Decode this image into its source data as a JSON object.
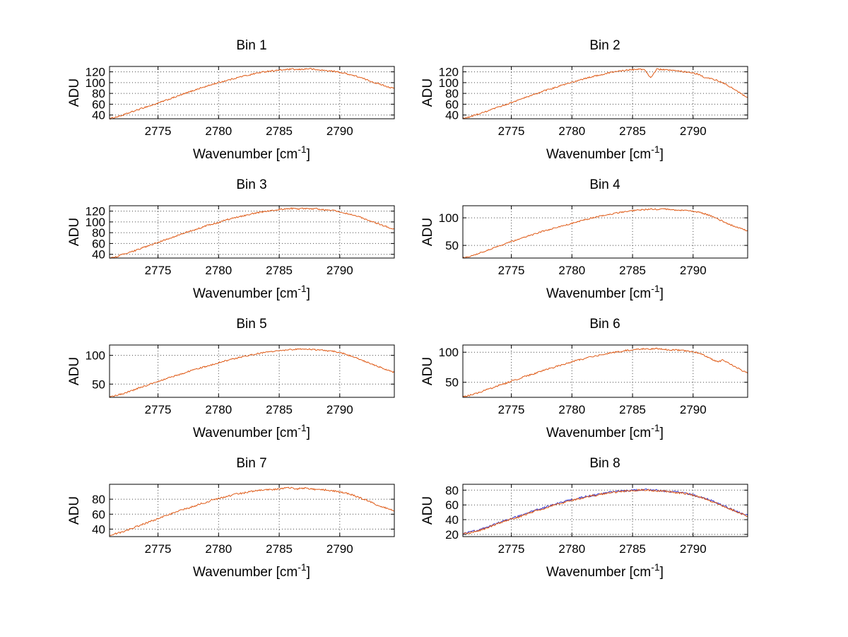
{
  "figure": {
    "background": "#ffffff"
  },
  "axis_labels": {
    "ylabel": "ADU",
    "xlabel_main": "Wavenumber [cm",
    "xlabel_sup": "-1",
    "xlabel_close": "]"
  },
  "colors": {
    "line_orange": "#df5a16",
    "line_blue": "#3333cc",
    "grid": "#4a4a4a",
    "axes": "#000000"
  },
  "chart_data": [
    {
      "type": "line",
      "title": "Bin 1",
      "xlabel": "Wavenumber [cm^-1]",
      "ylabel": "ADU",
      "xlim": [
        2771,
        2794.5
      ],
      "ylim": [
        33,
        130
      ],
      "xticks": [
        2775,
        2780,
        2785,
        2790
      ],
      "yticks": [
        40,
        60,
        80,
        100,
        120
      ],
      "grid": true,
      "x_start": 2771,
      "x_step": 0.5,
      "noise_amplitude": 1.3,
      "series": [
        {
          "name": "spectrum",
          "color": "#df5a16",
          "values": [
            33,
            36,
            39,
            43,
            47,
            51,
            55,
            58,
            62,
            66,
            70,
            74,
            78,
            82,
            86,
            90,
            93,
            97,
            100,
            103,
            106,
            109,
            112,
            114,
            117,
            119,
            121,
            122,
            123,
            124,
            125,
            124,
            125,
            126,
            124,
            123,
            122,
            121,
            119,
            117,
            114,
            111,
            107,
            103,
            99,
            96,
            92,
            89
          ]
        }
      ]
    },
    {
      "type": "line",
      "title": "Bin 2",
      "xlabel": "Wavenumber [cm^-1]",
      "ylabel": "ADU",
      "xlim": [
        2771,
        2794.5
      ],
      "ylim": [
        33,
        130
      ],
      "xticks": [
        2775,
        2780,
        2785,
        2790
      ],
      "yticks": [
        40,
        60,
        80,
        100,
        120
      ],
      "grid": true,
      "x_start": 2771,
      "x_step": 0.5,
      "noise_amplitude": 1.3,
      "series": [
        {
          "name": "spectrum",
          "color": "#df5a16",
          "values": [
            33,
            36,
            40,
            43,
            47,
            51,
            55,
            59,
            63,
            67,
            71,
            75,
            79,
            83,
            87,
            90,
            94,
            97,
            100,
            104,
            107,
            110,
            113,
            115,
            118,
            120,
            122,
            123,
            124,
            125,
            124,
            109,
            125,
            124,
            123,
            122,
            121,
            120,
            118,
            115,
            109,
            107,
            104,
            99,
            93,
            86,
            79,
            72
          ]
        }
      ]
    },
    {
      "type": "line",
      "title": "Bin 3",
      "xlabel": "Wavenumber [cm^-1]",
      "ylabel": "ADU",
      "xlim": [
        2771,
        2794.5
      ],
      "ylim": [
        33,
        130
      ],
      "xticks": [
        2775,
        2780,
        2785,
        2790
      ],
      "yticks": [
        40,
        60,
        80,
        100,
        120
      ],
      "grid": true,
      "x_start": 2771,
      "x_step": 0.5,
      "noise_amplitude": 1.3,
      "series": [
        {
          "name": "spectrum",
          "color": "#df5a16",
          "values": [
            33,
            35,
            39,
            42,
            46,
            50,
            54,
            58,
            62,
            66,
            70,
            74,
            78,
            82,
            85,
            89,
            93,
            96,
            99,
            103,
            106,
            109,
            111,
            114,
            116,
            118,
            120,
            122,
            123,
            124,
            125,
            124,
            125,
            124,
            125,
            123,
            122,
            121,
            119,
            116,
            113,
            110,
            106,
            102,
            98,
            94,
            90,
            87
          ]
        }
      ]
    },
    {
      "type": "line",
      "title": "Bin 4",
      "xlabel": "Wavenumber [cm^-1]",
      "ylabel": "ADU",
      "xlim": [
        2771,
        2794.5
      ],
      "ylim": [
        27,
        122
      ],
      "xticks": [
        2775,
        2780,
        2785,
        2790
      ],
      "yticks": [
        50,
        100
      ],
      "grid": true,
      "x_start": 2771,
      "x_step": 0.5,
      "noise_amplitude": 1.2,
      "series": [
        {
          "name": "spectrum",
          "color": "#df5a16",
          "values": [
            27,
            30,
            33,
            37,
            41,
            45,
            49,
            53,
            57,
            60,
            64,
            68,
            71,
            75,
            78,
            81,
            84,
            87,
            90,
            93,
            96,
            99,
            102,
            104,
            106,
            108,
            110,
            112,
            113,
            114,
            115,
            116,
            115,
            116,
            115,
            114,
            114,
            113,
            112,
            110,
            107,
            103,
            98,
            93,
            88,
            84,
            80,
            76
          ]
        }
      ]
    },
    {
      "type": "line",
      "title": "Bin 5",
      "xlabel": "Wavenumber [cm^-1]",
      "ylabel": "ADU",
      "xlim": [
        2771,
        2794.5
      ],
      "ylim": [
        27,
        118
      ],
      "xticks": [
        2775,
        2780,
        2785,
        2790
      ],
      "yticks": [
        50,
        100
      ],
      "grid": true,
      "x_start": 2771,
      "x_step": 0.5,
      "noise_amplitude": 1.2,
      "series": [
        {
          "name": "spectrum",
          "color": "#df5a16",
          "values": [
            28,
            30,
            33,
            36,
            40,
            44,
            47,
            51,
            55,
            58,
            62,
            65,
            68,
            72,
            75,
            78,
            81,
            84,
            87,
            90,
            93,
            95,
            98,
            100,
            102,
            104,
            106,
            107,
            108,
            109,
            110,
            111,
            110,
            111,
            110,
            109,
            108,
            107,
            105,
            102,
            98,
            94,
            90,
            86,
            82,
            78,
            74,
            70
          ]
        }
      ]
    },
    {
      "type": "line",
      "title": "Bin 6",
      "xlabel": "Wavenumber [cm^-1]",
      "ylabel": "ADU",
      "xlim": [
        2771,
        2794.5
      ],
      "ylim": [
        25,
        112
      ],
      "xticks": [
        2775,
        2780,
        2785,
        2790
      ],
      "yticks": [
        50,
        100
      ],
      "grid": true,
      "x_start": 2771,
      "x_step": 0.5,
      "noise_amplitude": 1.2,
      "series": [
        {
          "name": "spectrum",
          "color": "#df5a16",
          "values": [
            26,
            28,
            31,
            34,
            38,
            41,
            45,
            48,
            52,
            55,
            59,
            62,
            65,
            69,
            72,
            75,
            78,
            81,
            84,
            87,
            89,
            92,
            94,
            96,
            98,
            100,
            101,
            103,
            104,
            105,
            106,
            105,
            106,
            105,
            104,
            104,
            103,
            102,
            101,
            98,
            94,
            89,
            84,
            87,
            81,
            76,
            70,
            65
          ]
        }
      ]
    },
    {
      "type": "line",
      "title": "Bin 7",
      "xlabel": "Wavenumber [cm^-1]",
      "ylabel": "ADU",
      "xlim": [
        2771,
        2794.5
      ],
      "ylim": [
        30,
        100
      ],
      "xticks": [
        2775,
        2780,
        2785,
        2790
      ],
      "yticks": [
        40,
        60,
        80
      ],
      "grid": true,
      "x_start": 2771,
      "x_step": 0.5,
      "noise_amplitude": 1.1,
      "series": [
        {
          "name": "spectrum",
          "color": "#df5a16",
          "values": [
            32,
            34,
            36,
            39,
            42,
            45,
            48,
            51,
            54,
            57,
            60,
            63,
            66,
            68,
            71,
            74,
            76,
            79,
            81,
            83,
            85,
            87,
            88,
            90,
            91,
            92,
            93,
            93,
            94,
            95,
            95,
            94,
            95,
            94,
            93,
            93,
            92,
            91,
            90,
            88,
            86,
            83,
            80,
            77,
            73,
            70,
            67,
            64
          ]
        }
      ]
    },
    {
      "type": "line",
      "title": "Bin 8",
      "xlabel": "Wavenumber [cm^-1]",
      "ylabel": "ADU",
      "xlim": [
        2771,
        2794.5
      ],
      "ylim": [
        17,
        88
      ],
      "xticks": [
        2775,
        2780,
        2785,
        2790
      ],
      "yticks": [
        20,
        40,
        60,
        80
      ],
      "grid": true,
      "x_start": 2771,
      "x_step": 0.5,
      "noise_amplitude": 1.2,
      "series": [
        {
          "name": "spectrum-blue",
          "color": "#3333cc",
          "values": [
            21,
            23,
            25,
            27,
            30,
            33,
            36,
            39,
            42,
            44,
            47,
            50,
            53,
            55,
            58,
            61,
            63,
            65,
            67,
            69,
            71,
            72,
            74,
            75,
            77,
            78,
            79,
            79,
            80,
            80,
            81,
            80,
            80,
            79,
            78,
            78,
            77,
            75,
            74,
            71,
            69,
            66,
            62,
            59,
            55,
            52,
            48,
            46
          ]
        },
        {
          "name": "spectrum-orange",
          "color": "#df5a16",
          "values": [
            21,
            22,
            24,
            26,
            29,
            32,
            35,
            38,
            41,
            43,
            46,
            49,
            52,
            54,
            57,
            60,
            62,
            64,
            66,
            68,
            70,
            72,
            73,
            75,
            76,
            77,
            78,
            79,
            79,
            80,
            80,
            80,
            79,
            79,
            78,
            77,
            76,
            75,
            73,
            71,
            68,
            65,
            62,
            58,
            55,
            51,
            48,
            45
          ]
        }
      ]
    }
  ]
}
